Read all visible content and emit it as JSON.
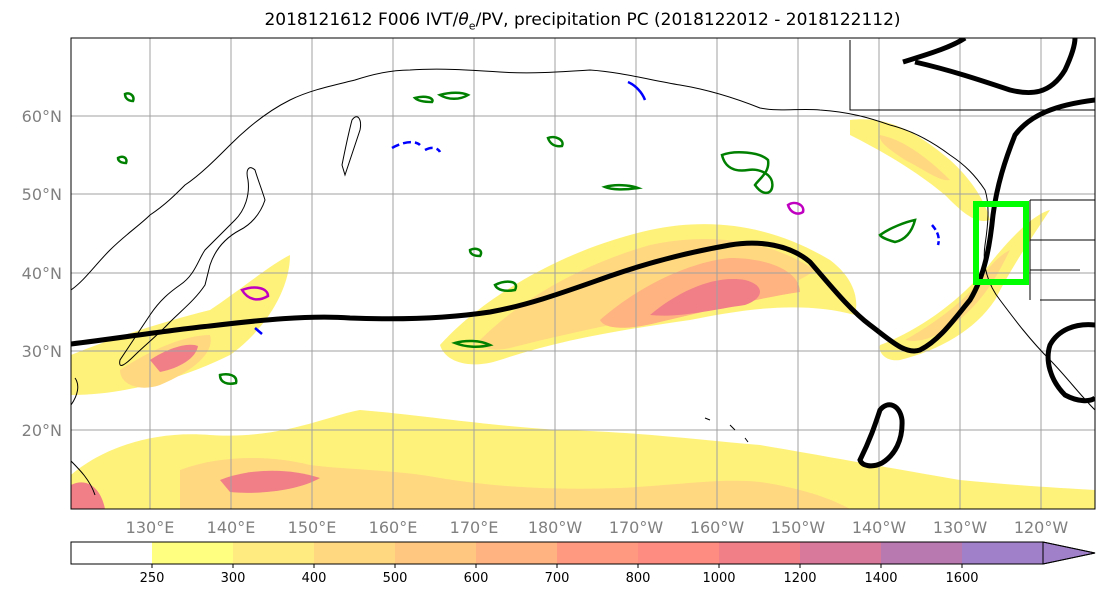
{
  "title": {
    "prefix": "2018121612 F006 IVT/",
    "theta": "θ",
    "sub": "e",
    "suffix": "/PV, precipitation PC (2018122012 - 2018122112)"
  },
  "map": {
    "latitudes": [
      "60°N",
      "50°N",
      "40°N",
      "30°N",
      "20°N"
    ],
    "longitudes": [
      "130°E",
      "140°E",
      "150°E",
      "160°E",
      "170°E",
      "180°W",
      "170°W",
      "160°W",
      "150°W",
      "140°W",
      "130°W",
      "120°W"
    ]
  },
  "colorbar": {
    "levels": [
      "250",
      "300",
      "400",
      "500",
      "600",
      "700",
      "800",
      "1000",
      "1200",
      "1400",
      "1600"
    ],
    "colors": [
      "#ffffff",
      "#ffff80",
      "#ffeb80",
      "#ffd880",
      "#ffc780",
      "#ffb380",
      "#ff9980",
      "#ff8c80",
      "#f07f88",
      "#d8789a",
      "#b878b0",
      "#a080c8"
    ]
  },
  "colors": {
    "ivt_contour": "#000000",
    "theta_e_contour": "#008000",
    "pv_negative": "#0000ff",
    "pv_positive": "#c000c0",
    "highlight_box": "#00ff00"
  }
}
